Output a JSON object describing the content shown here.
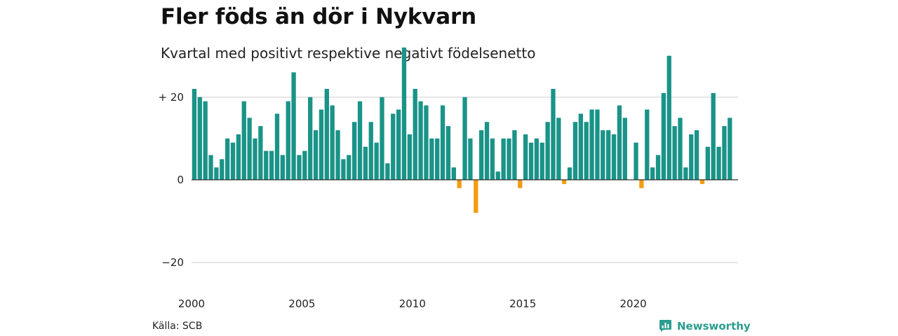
{
  "header": {
    "title": "Fler föds än dör i Nykvarn",
    "subtitle": "Kvartal med positivt respektive negativt födelsenetto"
  },
  "footer": {
    "source": "Källa: SCB",
    "brand": "Newsworthy",
    "brand_icon": "bar-chart-icon"
  },
  "colors": {
    "positive": "#1a9388",
    "negative": "#f39c12",
    "grid": "#dddddd",
    "baseline": "#333333",
    "brand": "#2a9d8f"
  },
  "chart_data": {
    "type": "bar",
    "x_start_year": 2000,
    "periods_per_year": 4,
    "x_ticks": [
      {
        "value": 2000,
        "label": "2000"
      },
      {
        "value": 2005,
        "label": "2005"
      },
      {
        "value": 2010,
        "label": "2010"
      },
      {
        "value": 2015,
        "label": "2015"
      },
      {
        "value": 2020,
        "label": "2020"
      }
    ],
    "y_ticks": [
      {
        "value": 20,
        "label": "+ 20"
      },
      {
        "value": 0,
        "label": "0"
      },
      {
        "value": -20,
        "label": "−20"
      }
    ],
    "ylim": [
      -31,
      33
    ],
    "grid": true,
    "values": [
      22,
      20,
      19,
      6,
      3,
      5,
      10,
      9,
      11,
      19,
      15,
      10,
      13,
      7,
      7,
      16,
      6,
      19,
      26,
      6,
      7,
      20,
      12,
      17,
      22,
      18,
      12,
      5,
      6,
      14,
      19,
      8,
      14,
      9,
      20,
      4,
      16,
      17,
      32,
      11,
      22,
      19,
      18,
      10,
      10,
      18,
      13,
      3,
      -2,
      20,
      10,
      -8,
      12,
      14,
      10,
      2,
      10,
      10,
      12,
      -2,
      11,
      9,
      10,
      9,
      14,
      22,
      15,
      -1,
      3,
      14,
      16,
      14,
      17,
      17,
      12,
      12,
      11,
      18,
      15,
      0,
      9,
      -2,
      17,
      3,
      6,
      21,
      30,
      13,
      15,
      3,
      11,
      12,
      -1,
      8,
      21,
      8,
      13,
      15
    ]
  }
}
